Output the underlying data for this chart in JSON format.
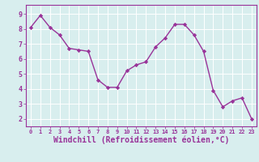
{
  "x": [
    0,
    1,
    2,
    3,
    4,
    5,
    6,
    7,
    8,
    9,
    10,
    11,
    12,
    13,
    14,
    15,
    16,
    17,
    18,
    19,
    20,
    21,
    22,
    23
  ],
  "y": [
    8.1,
    8.9,
    8.1,
    7.6,
    6.7,
    6.6,
    6.5,
    4.6,
    4.1,
    4.1,
    5.2,
    5.6,
    5.8,
    6.8,
    7.4,
    8.3,
    8.3,
    7.6,
    6.5,
    3.9,
    2.8,
    3.2,
    3.4,
    2.0
  ],
  "line_color": "#993399",
  "marker": "D",
  "marker_size": 2.2,
  "linewidth": 1.0,
  "xlabel": "Windchill (Refroidissement éolien,°C)",
  "xlabel_fontsize": 7,
  "xtick_labels": [
    "0",
    "1",
    "2",
    "3",
    "4",
    "5",
    "6",
    "7",
    "8",
    "9",
    "10",
    "11",
    "12",
    "13",
    "14",
    "15",
    "16",
    "17",
    "18",
    "19",
    "20",
    "21",
    "22",
    "23"
  ],
  "ytick_vals": [
    2,
    3,
    4,
    5,
    6,
    7,
    8,
    9
  ],
  "ytick_labels": [
    "2",
    "3",
    "4",
    "5",
    "6",
    "7",
    "8",
    "9"
  ],
  "ylim": [
    1.5,
    9.6
  ],
  "xlim": [
    -0.5,
    23.5
  ],
  "bg_color": "#d8eeee",
  "grid_color": "#b8d8d8",
  "spine_color": "#993399",
  "tick_color": "#993399",
  "label_color": "#993399"
}
